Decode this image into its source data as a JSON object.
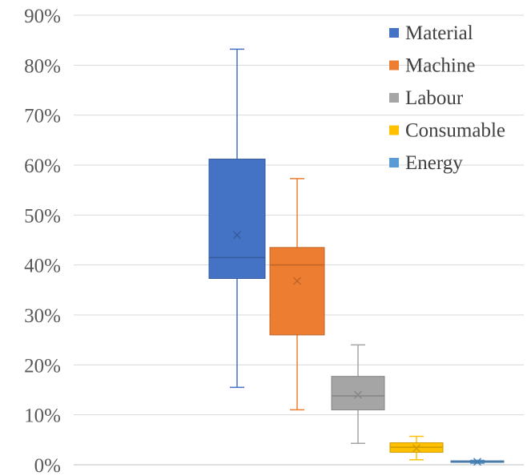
{
  "chart_data": {
    "type": "box",
    "title": "",
    "xlabel": "",
    "ylabel": "",
    "ylim": [
      0,
      0.9
    ],
    "y_ticks": [
      0,
      0.1,
      0.2,
      0.3,
      0.4,
      0.5,
      0.6,
      0.7,
      0.8,
      0.9
    ],
    "y_tick_labels": [
      "0%",
      "10%",
      "20%",
      "30%",
      "40%",
      "50%",
      "60%",
      "70%",
      "80%",
      "90%"
    ],
    "grid": true,
    "legend_position": "top-right",
    "series": [
      {
        "name": "Material",
        "color": "#4472C4",
        "min": 0.155,
        "q1": 0.373,
        "median": 0.415,
        "q3": 0.612,
        "max": 0.832,
        "mean": 0.46
      },
      {
        "name": "Machine",
        "color": "#ED7D31",
        "min": 0.11,
        "q1": 0.26,
        "median": 0.4,
        "q3": 0.435,
        "max": 0.573,
        "mean": 0.368
      },
      {
        "name": "Labour",
        "color": "#A5A5A5",
        "min": 0.043,
        "q1": 0.11,
        "median": 0.138,
        "q3": 0.177,
        "max": 0.24,
        "mean": 0.14
      },
      {
        "name": "Consumable",
        "color": "#FFC000",
        "min": 0.01,
        "q1": 0.025,
        "median": 0.035,
        "q3": 0.044,
        "max": 0.057,
        "mean": 0.033
      },
      {
        "name": "Energy",
        "color": "#5B9BD5",
        "min": 0.003,
        "q1": 0.005,
        "median": 0.006,
        "q3": 0.008,
        "max": 0.009,
        "mean": 0.006
      }
    ]
  }
}
